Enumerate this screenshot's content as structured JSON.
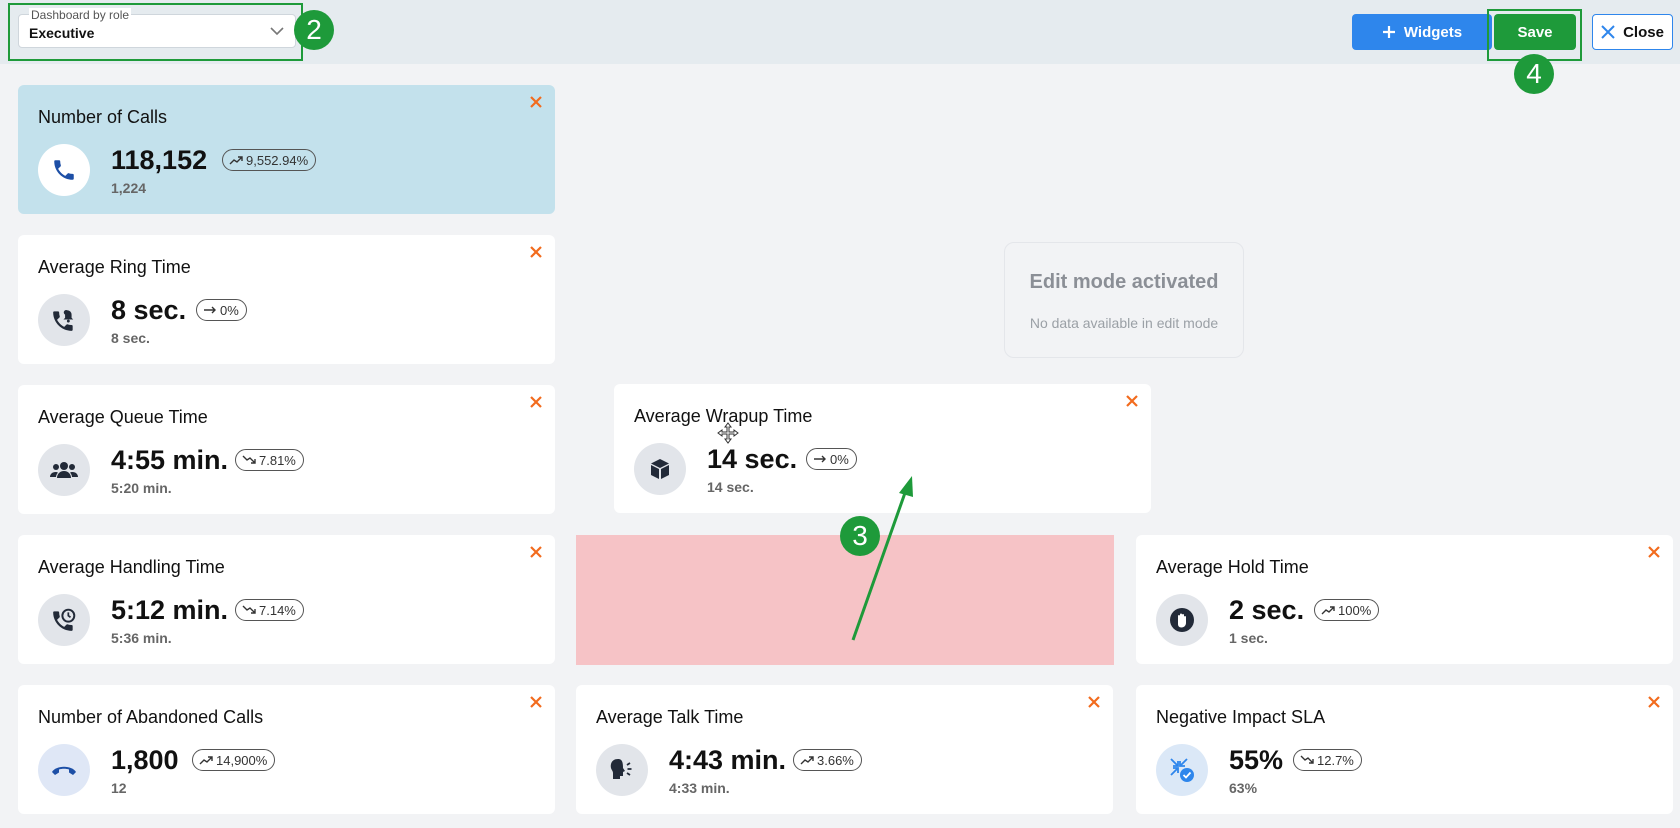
{
  "toolbar": {
    "role_label": "Dashboard by role",
    "role_value": "Executive",
    "widgets_label": "Widgets",
    "save_label": "Save",
    "close_label": "Close"
  },
  "annotations": {
    "step2": "2",
    "step3": "3",
    "step4": "4"
  },
  "edit_panel": {
    "heading": "Edit mode activated",
    "message": "No data available in edit mode"
  },
  "widgets": [
    {
      "title": "Number of Calls",
      "value": "118,152",
      "change": "9,552.94%",
      "trend": "up",
      "previous": "1,224",
      "icon": "phone-icon"
    },
    {
      "title": "Average Ring Time",
      "value": "8 sec.",
      "change": "0%",
      "trend": "flat",
      "previous": "8 sec.",
      "icon": "phone-ring-icon"
    },
    {
      "title": "Average Queue Time",
      "value": "4:55 min.",
      "change": "7.81%",
      "trend": "down",
      "previous": "5:20 min.",
      "icon": "people-group-icon"
    },
    {
      "title": "Average Wrapup Time",
      "value": "14 sec.",
      "change": "0%",
      "trend": "flat",
      "previous": "14 sec.",
      "icon": "box-icon"
    },
    {
      "title": "Average Handling Time",
      "value": "5:12 min.",
      "change": "7.14%",
      "trend": "down",
      "previous": "5:36 min.",
      "icon": "phone-clock-icon"
    },
    {
      "title": "Average Hold Time",
      "value": "2 sec.",
      "change": "100%",
      "trend": "up",
      "previous": "1 sec.",
      "icon": "hand-stop-icon"
    },
    {
      "title": "Number of Abandoned Calls",
      "value": "1,800",
      "change": "14,900%",
      "trend": "up",
      "previous": "12",
      "icon": "phone-hangup-icon"
    },
    {
      "title": "Average Talk Time",
      "value": "4:43 min.",
      "change": "3.66%",
      "trend": "up",
      "previous": "4:33 min.",
      "icon": "speaking-head-icon"
    },
    {
      "title": "Negative Impact SLA",
      "value": "55%",
      "change": "12.7%",
      "trend": "down",
      "previous": "63%",
      "icon": "sla-impact-icon"
    }
  ],
  "colors": {
    "accent_blue": "#2e86ec",
    "save_green": "#1e9a3a",
    "annotation_green": "#1e9a3a",
    "remove_orange": "#f26b1d",
    "highlight_card": "#c3e1ec",
    "drop_zone": "#f6c3c6"
  }
}
